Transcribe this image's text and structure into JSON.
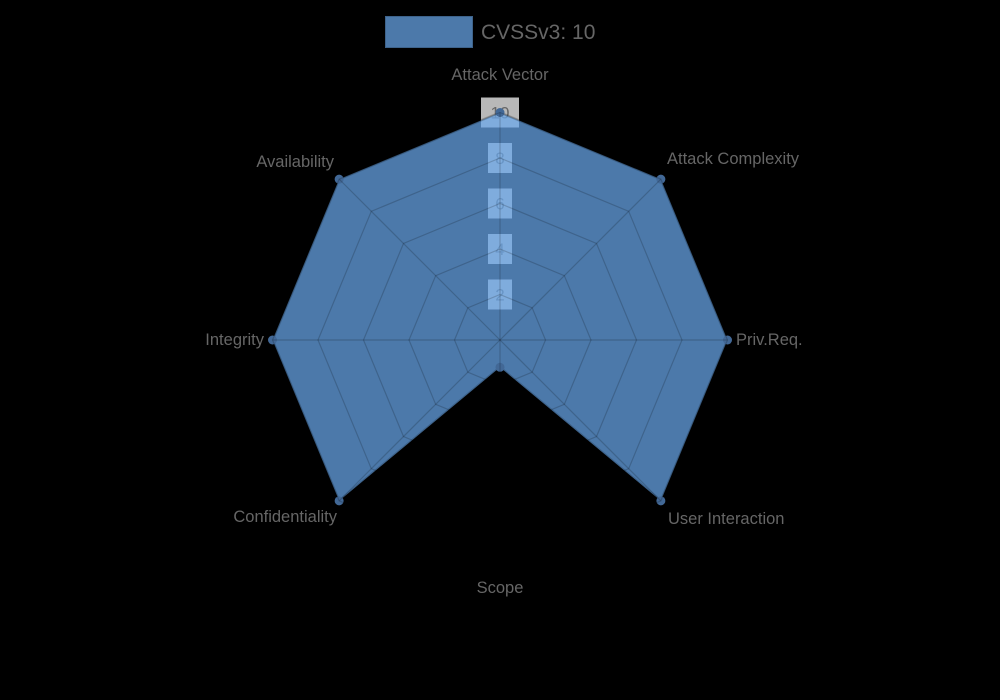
{
  "legend": {
    "label": "CVSSv3: 10"
  },
  "chart_data": {
    "type": "radar",
    "title": "",
    "categories": [
      "Attack Vector",
      "Attack Complexity",
      "Priv.Req.",
      "User Interaction",
      "Scope",
      "Confidentiality",
      "Integrity",
      "Availability"
    ],
    "series": [
      {
        "name": "CVSSv3: 10",
        "values": [
          10,
          10,
          10,
          10,
          1.2,
          10,
          10,
          10
        ]
      }
    ],
    "ticks": [
      2,
      4,
      6,
      8,
      10
    ],
    "rmin": 0,
    "rmax": 10,
    "grid_shape": "polygon",
    "grid_on": true,
    "legend_position": "top",
    "colors": {
      "background": "#000000",
      "series_fill": "rgba(106,167,235,0.72)",
      "series_fill_over_black": "#4C78A9",
      "series_edge": "rgba(0,0,0,0.18)",
      "point": "#426896",
      "grid_line": "rgba(0,0,0,0.18)",
      "tick_backdrop": "rgba(255,255,255,0.72)",
      "label_text": "#666666"
    }
  }
}
